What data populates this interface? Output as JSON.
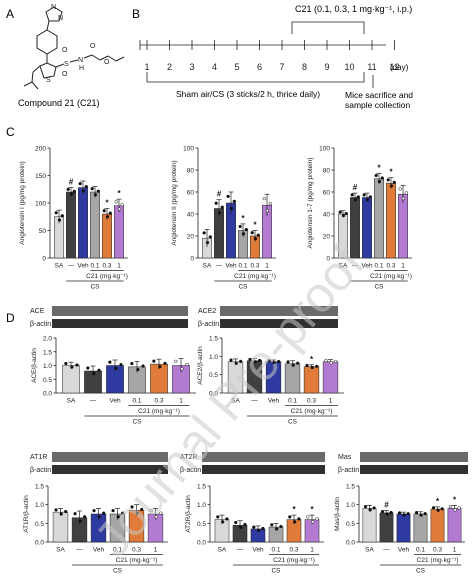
{
  "panels": {
    "A": {
      "letter": "A",
      "caption": "Compound 21 (C21)",
      "atoms": [
        "N",
        "N",
        "S",
        "O",
        "O",
        "N",
        "H",
        "O",
        "O",
        "S"
      ]
    },
    "B": {
      "letter": "B",
      "dose_label": "C21 (0.1, 0.3, 1 mg·kg⁻¹, i.p.)",
      "days": [
        "1",
        "2",
        "3",
        "4",
        "5",
        "6",
        "7",
        "8",
        "9",
        "10",
        "11",
        "12"
      ],
      "day_unit": "(day)",
      "exposure_label": "Sham air/CS (3 sticks/2 h, thrice daily)",
      "endpoint_label": [
        "Mice sacrifice and",
        "sample collection"
      ]
    },
    "C": {
      "letter": "C"
    },
    "D": {
      "letter": "D",
      "blot_labels": {
        "ace": "ACE",
        "ace2": "ACE2",
        "at1r": "AT1R",
        "at2r": "AT2R",
        "mas": "Mas",
        "actin": "β-actin"
      }
    }
  },
  "colors": {
    "SA": "#d9d9d9",
    "CS": "#404040",
    "Veh": "#2e3a9f",
    "C21_0.1": "#a6a6a6",
    "C21_0.3": "#e07b39",
    "C21_1": "#b37ad1",
    "outline": "#222222",
    "watermark": "#c8c8c8"
  },
  "watermark": "Journal Pre-proof",
  "chart_data": [
    {
      "id": "ang1",
      "type": "bar",
      "ylabel": "Angiotensin I (pg/mg protein)",
      "ylim": [
        0,
        200
      ],
      "yticks": [
        0,
        50,
        100,
        150,
        200
      ],
      "categories": [
        "SA",
        "—",
        "Veh",
        "0.1",
        "0.3",
        "1"
      ],
      "dose_label": "C21 (mg·kg⁻¹)",
      "group_label": "CS",
      "values": [
        75,
        120,
        128,
        120,
        80,
        95
      ],
      "errors": [
        12,
        8,
        12,
        10,
        10,
        12
      ],
      "annotations": [
        "",
        "#",
        "",
        "",
        "*",
        "*"
      ]
    },
    {
      "id": "ang2",
      "type": "bar",
      "ylabel": "Angiotensin II (pg/mg protein)",
      "ylim": [
        0,
        100
      ],
      "yticks": [
        0,
        20,
        40,
        60,
        80,
        100
      ],
      "categories": [
        "SA",
        "—",
        "Veh",
        "0.1",
        "0.3",
        "1"
      ],
      "dose_label": "C21 (mg·kg⁻¹)",
      "group_label": "CS",
      "values": [
        18,
        45,
        50,
        25,
        20,
        48
      ],
      "errors": [
        8,
        8,
        10,
        6,
        5,
        10
      ],
      "annotations": [
        "",
        "#",
        "",
        "*",
        "*",
        ""
      ]
    },
    {
      "id": "ang17",
      "type": "bar",
      "ylabel": "Angiotensin 1-7 (pg/mg protein)",
      "ylim": [
        0,
        100
      ],
      "yticks": [
        0,
        20,
        40,
        60,
        80,
        100
      ],
      "categories": [
        "SA",
        "—",
        "Veh",
        "0.1",
        "0.3",
        "1"
      ],
      "dose_label": "C21 (mg·kg⁻¹)",
      "group_label": "CS",
      "values": [
        40,
        55,
        55,
        72,
        68,
        58
      ],
      "errors": [
        3,
        4,
        4,
        5,
        5,
        8
      ],
      "annotations": [
        "",
        "#",
        "",
        "*",
        "*",
        ""
      ]
    },
    {
      "id": "ace",
      "type": "bar",
      "ylabel": "ACE/β-actin",
      "ylim": [
        0,
        2.0
      ],
      "yticks": [
        0.0,
        0.5,
        1.0,
        1.5,
        2.0
      ],
      "categories": [
        "SA",
        "—",
        "Veh",
        "0.1",
        "0.3",
        "1"
      ],
      "dose_label": "C21 (mg·kg⁻¹)",
      "group_label": "CS",
      "values": [
        1.0,
        0.8,
        1.0,
        0.95,
        1.05,
        1.0
      ],
      "errors": [
        0.12,
        0.18,
        0.2,
        0.2,
        0.18,
        0.25
      ],
      "annotations": [
        "",
        "",
        "",
        "",
        "",
        ""
      ]
    },
    {
      "id": "ace2",
      "type": "bar",
      "ylabel": "ACE2/β-actin",
      "ylim": [
        0,
        1.5
      ],
      "yticks": [
        0.0,
        0.5,
        1.0,
        1.5
      ],
      "categories": [
        "SA",
        "—",
        "Veh",
        "0.1",
        "0.3",
        "1"
      ],
      "dose_label": "C21 (mg·kg⁻¹)",
      "group_label": "CS",
      "values": [
        0.85,
        0.88,
        0.85,
        0.8,
        0.72,
        0.85
      ],
      "errors": [
        0.08,
        0.06,
        0.05,
        0.08,
        0.05,
        0.06
      ],
      "annotations": [
        "",
        "",
        "",
        "",
        "*",
        ""
      ]
    },
    {
      "id": "at1r",
      "type": "bar",
      "ylabel": "AT1R/β-actin",
      "ylim": [
        0,
        1.5
      ],
      "yticks": [
        0.0,
        0.5,
        1.0,
        1.5
      ],
      "categories": [
        "SA",
        "—",
        "Veh",
        "0.1",
        "0.3",
        "1"
      ],
      "dose_label": "C21 (mg·kg⁻¹)",
      "group_label": "CS",
      "values": [
        0.8,
        0.65,
        0.75,
        0.75,
        0.85,
        0.75
      ],
      "errors": [
        0.1,
        0.18,
        0.15,
        0.15,
        0.15,
        0.15
      ],
      "annotations": [
        "",
        "",
        "",
        "",
        "",
        ""
      ]
    },
    {
      "id": "at2r",
      "type": "bar",
      "ylabel": "AT2R/β-actin",
      "ylim": [
        0,
        1.5
      ],
      "yticks": [
        0.0,
        0.5,
        1.0,
        1.5
      ],
      "categories": [
        "SA",
        "—",
        "Veh",
        "0.1",
        "0.3",
        "1"
      ],
      "dose_label": "C21 (mg·kg⁻¹)",
      "group_label": "CS",
      "values": [
        0.6,
        0.45,
        0.35,
        0.4,
        0.6,
        0.6
      ],
      "errors": [
        0.12,
        0.12,
        0.08,
        0.1,
        0.12,
        0.12
      ],
      "annotations": [
        "",
        "",
        "",
        "",
        "*",
        "*"
      ]
    },
    {
      "id": "mas",
      "type": "bar",
      "ylabel": "Mas/β-actin",
      "ylim": [
        0,
        1.5
      ],
      "yticks": [
        0.0,
        0.5,
        1.0,
        1.5
      ],
      "categories": [
        "SA",
        "—",
        "Veh",
        "0.1",
        "0.3",
        "1"
      ],
      "dose_label": "C21 (mg·kg⁻¹)",
      "group_label": "CS",
      "values": [
        0.9,
        0.78,
        0.75,
        0.75,
        0.88,
        0.9
      ],
      "errors": [
        0.08,
        0.06,
        0.05,
        0.06,
        0.06,
        0.08
      ],
      "annotations": [
        "",
        "#",
        "",
        "",
        "*",
        "*"
      ]
    }
  ]
}
